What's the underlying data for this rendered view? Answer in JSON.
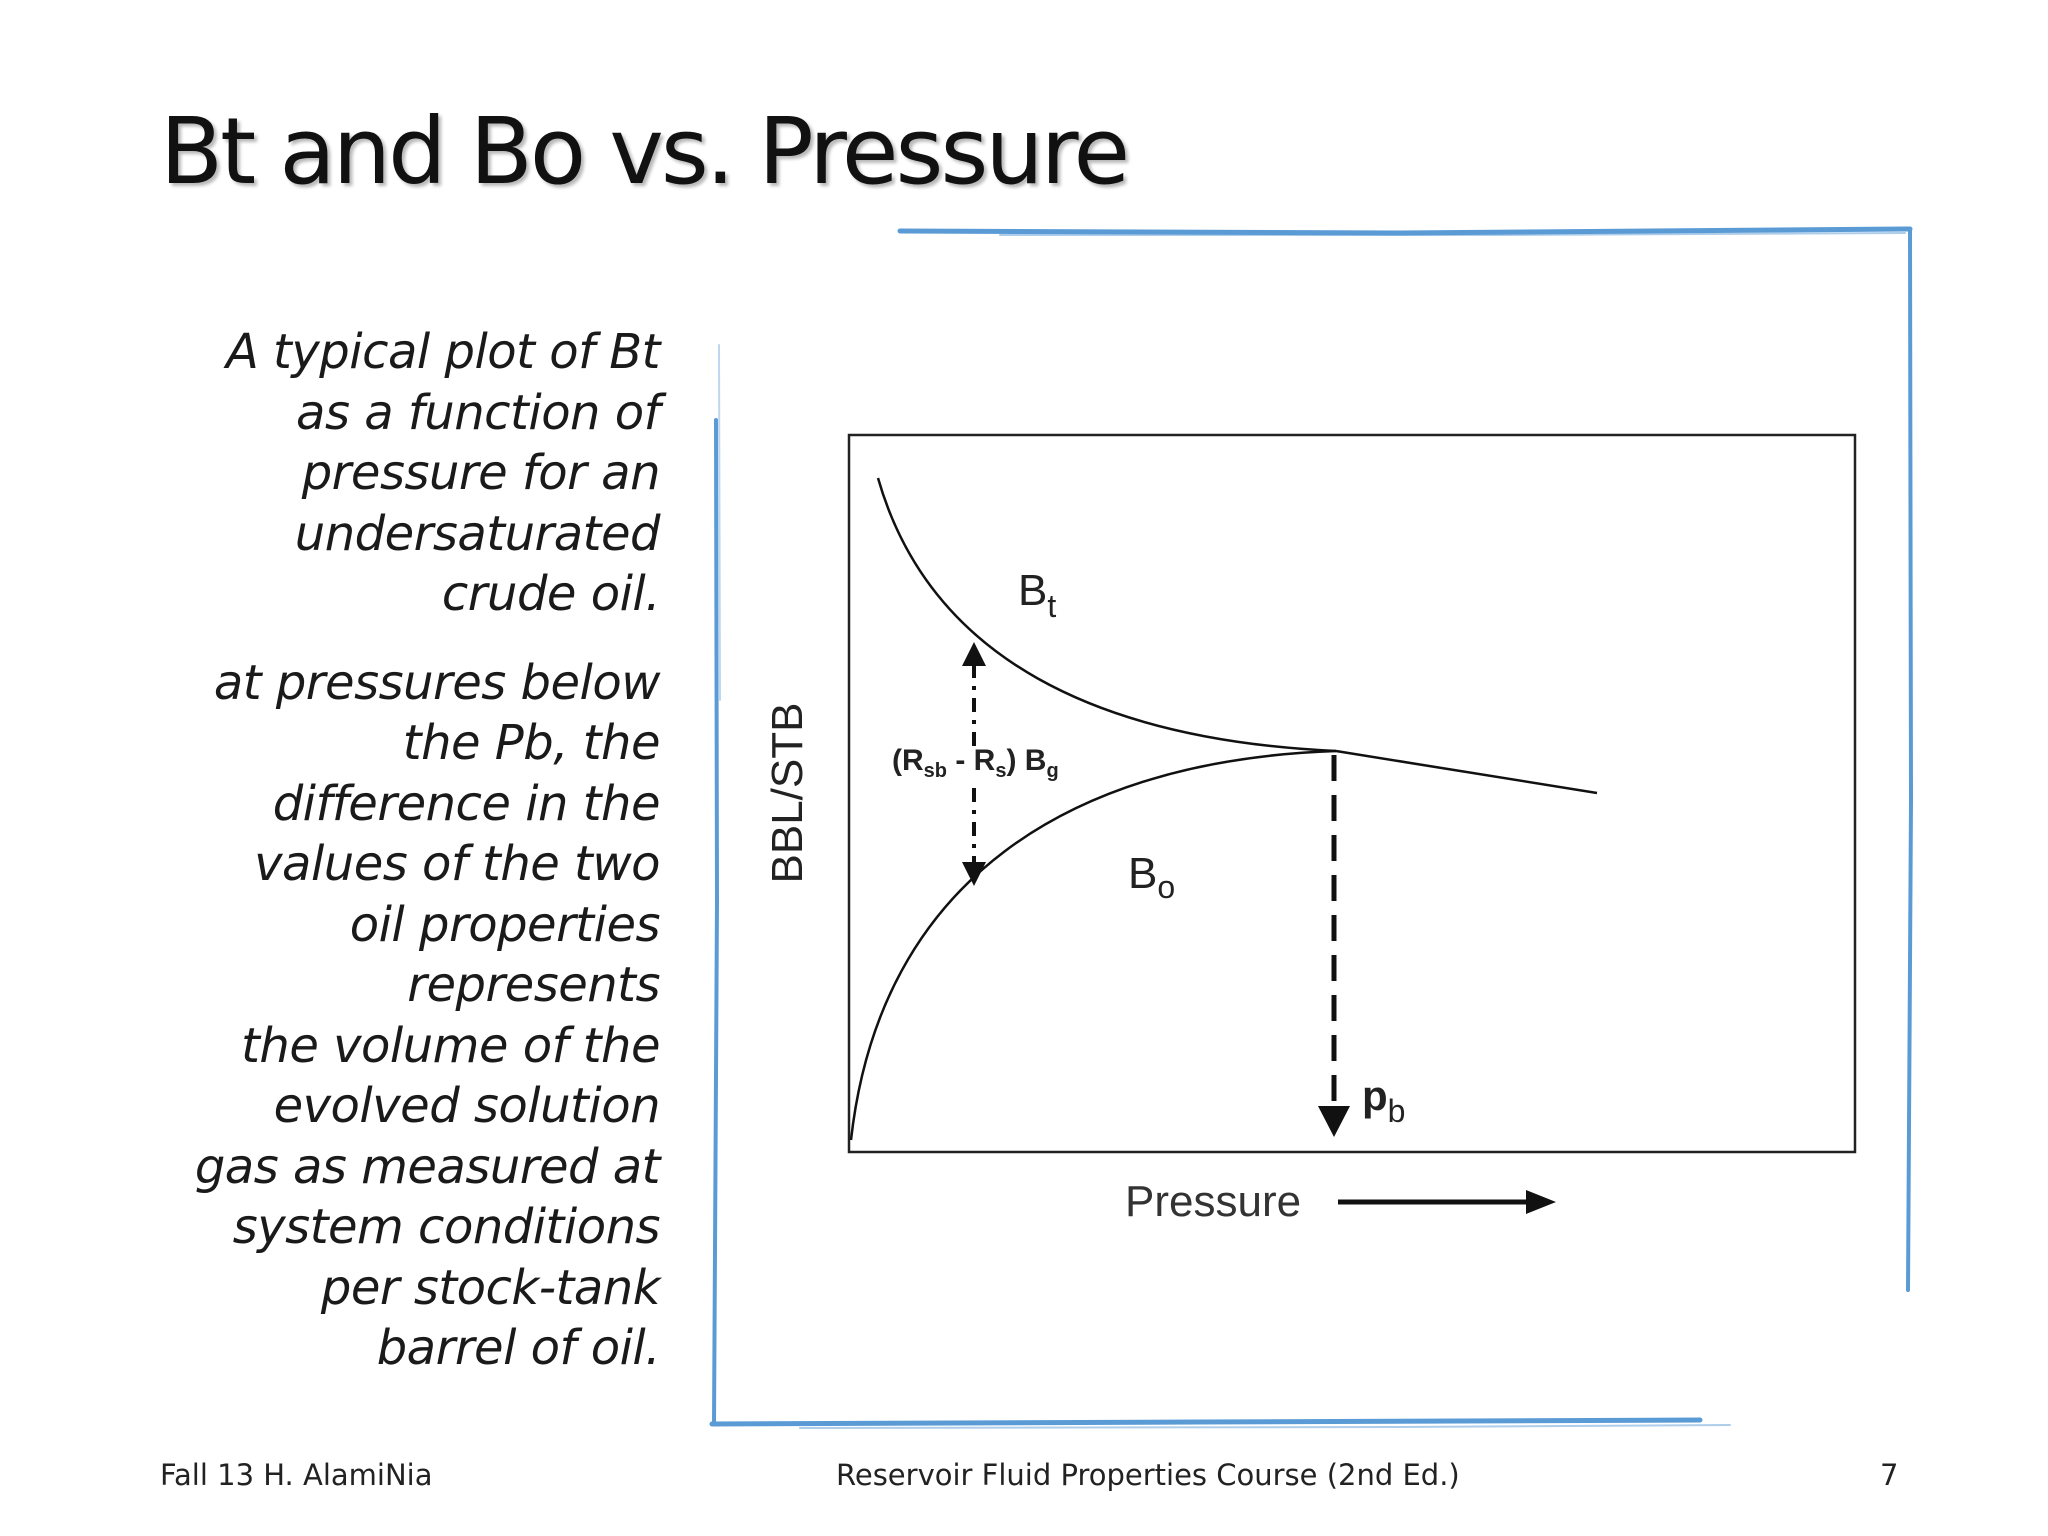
{
  "slide": {
    "title": "Bt and Bo vs. Pressure",
    "paragraphs": [
      "A typical plot of Bt\nas a function of\npressure for an\nundersaturated\ncrude oil.",
      "at pressures below\nthe Pb, the\ndifference in the\nvalues of the two\noil properties\nrepresents\nthe volume of the\nevolved solution\ngas as measured at\nsystem conditions\nper stock-tank\nbarrel of oil."
    ]
  },
  "diagram": {
    "y_axis_label": "BBL/STB",
    "x_axis_label": "Pressure",
    "bt_label": {
      "base": "B",
      "sub": "t"
    },
    "bo_label": {
      "base": "B",
      "sub": "o"
    },
    "pb_label": {
      "base": "p",
      "sub": "b"
    },
    "diff_label": {
      "open": "(R",
      "sub1": "sb",
      "minus": " - R",
      "sub2": "s",
      "close": ") B",
      "sub3": "g"
    },
    "frame_color": "#5b9bd5"
  },
  "footer": {
    "left": "Fall 13 H. AlamiNia",
    "center": "Reservoir Fluid Properties Course (2nd Ed.)",
    "page": "7"
  }
}
